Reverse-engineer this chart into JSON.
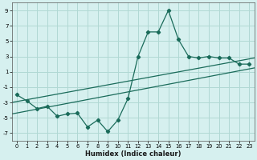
{
  "x": [
    0,
    1,
    2,
    3,
    4,
    5,
    6,
    7,
    8,
    9,
    10,
    11,
    12,
    13,
    14,
    15,
    16,
    17,
    18,
    19,
    20,
    21,
    22,
    23
  ],
  "y": [
    -2.0,
    -2.8,
    -3.8,
    -3.5,
    -4.8,
    -4.5,
    -4.4,
    -6.2,
    -5.3,
    -6.8,
    -5.3,
    -2.5,
    3.0,
    6.2,
    6.2,
    9.0,
    5.2,
    3.0,
    2.8,
    3.0,
    2.8,
    2.8,
    2.0,
    2.0
  ],
  "line_color": "#1a6b5a",
  "bg_color": "#d6f0ef",
  "grid_color": "#b0d8d4",
  "xlabel": "Humidex (Indice chaleur)",
  "xlim": [
    -0.5,
    23.5
  ],
  "ylim": [
    -8,
    10
  ],
  "yticks": [
    -7,
    -5,
    -3,
    -1,
    1,
    3,
    5,
    7,
    9
  ],
  "xticks": [
    0,
    1,
    2,
    3,
    4,
    5,
    6,
    7,
    8,
    9,
    10,
    11,
    12,
    13,
    14,
    15,
    16,
    17,
    18,
    19,
    20,
    21,
    22,
    23
  ],
  "reg_line1": [
    -4.5,
    2.8
  ],
  "reg_line2": [
    -3.2,
    2.0
  ],
  "reg_line3": [
    -5.5,
    1.5
  ]
}
